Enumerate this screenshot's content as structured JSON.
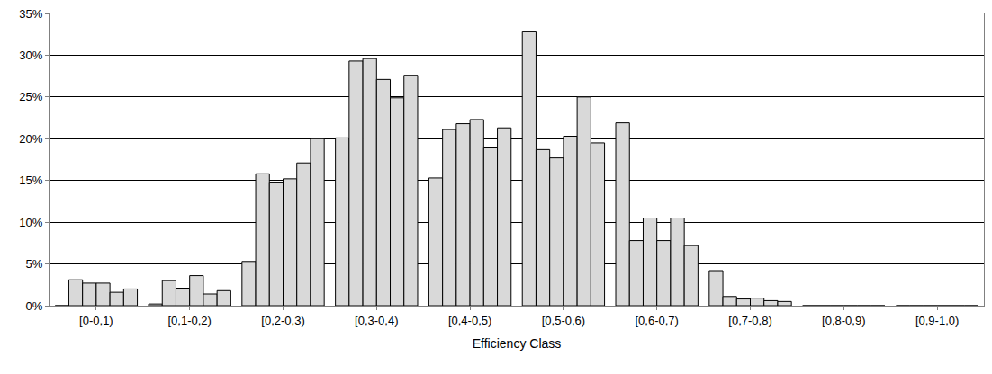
{
  "chart_data": {
    "type": "bar",
    "x_label": "Efficiency Class",
    "categories": [
      "[0-0,1)",
      "[0,1-0,2)",
      "[0,2-0,3)",
      "[0,3-0,4)",
      "[0,4-0,5)",
      "[0,5-0,6)",
      "[0,6-0,7)",
      "[0,7-0,8)",
      "[0,8-0,9)",
      "[0,9-1,0)"
    ],
    "color": "#d9d9d9",
    "series": [
      {
        "values": [
          0,
          0.2,
          5.3,
          20.1,
          15.3,
          32.8,
          21.9,
          4.2,
          0,
          0
        ]
      },
      {
        "values": [
          3.1,
          3.0,
          15.8,
          29.3,
          21.1,
          18.7,
          7.8,
          1.1,
          0,
          0
        ]
      },
      {
        "values": [
          2.7,
          2.1,
          14.8,
          29.6,
          21.8,
          17.7,
          10.5,
          0.8,
          0,
          0
        ]
      },
      {
        "values": [
          2.7,
          3.6,
          15.2,
          27.1,
          22.3,
          20.3,
          7.8,
          0.9,
          0,
          0
        ]
      },
      {
        "values": [
          1.6,
          1.4,
          17.1,
          24.9,
          18.9,
          25.0,
          10.5,
          0.6,
          0,
          0
        ]
      },
      {
        "values": [
          2.0,
          1.8,
          20.0,
          27.6,
          21.3,
          19.5,
          7.2,
          0.5,
          0,
          0
        ]
      }
    ],
    "ylim": [
      0,
      35
    ],
    "yticks": [
      {
        "value": 0,
        "label": "0%"
      },
      {
        "value": 5,
        "label": "5%"
      },
      {
        "value": 10,
        "label": "10%"
      },
      {
        "value": 15,
        "label": "15%"
      },
      {
        "value": 20,
        "label": "20%"
      },
      {
        "value": 25,
        "label": "25%"
      },
      {
        "value": 30,
        "label": "30%"
      },
      {
        "value": 35,
        "label": "35%"
      }
    ],
    "grid": true
  }
}
